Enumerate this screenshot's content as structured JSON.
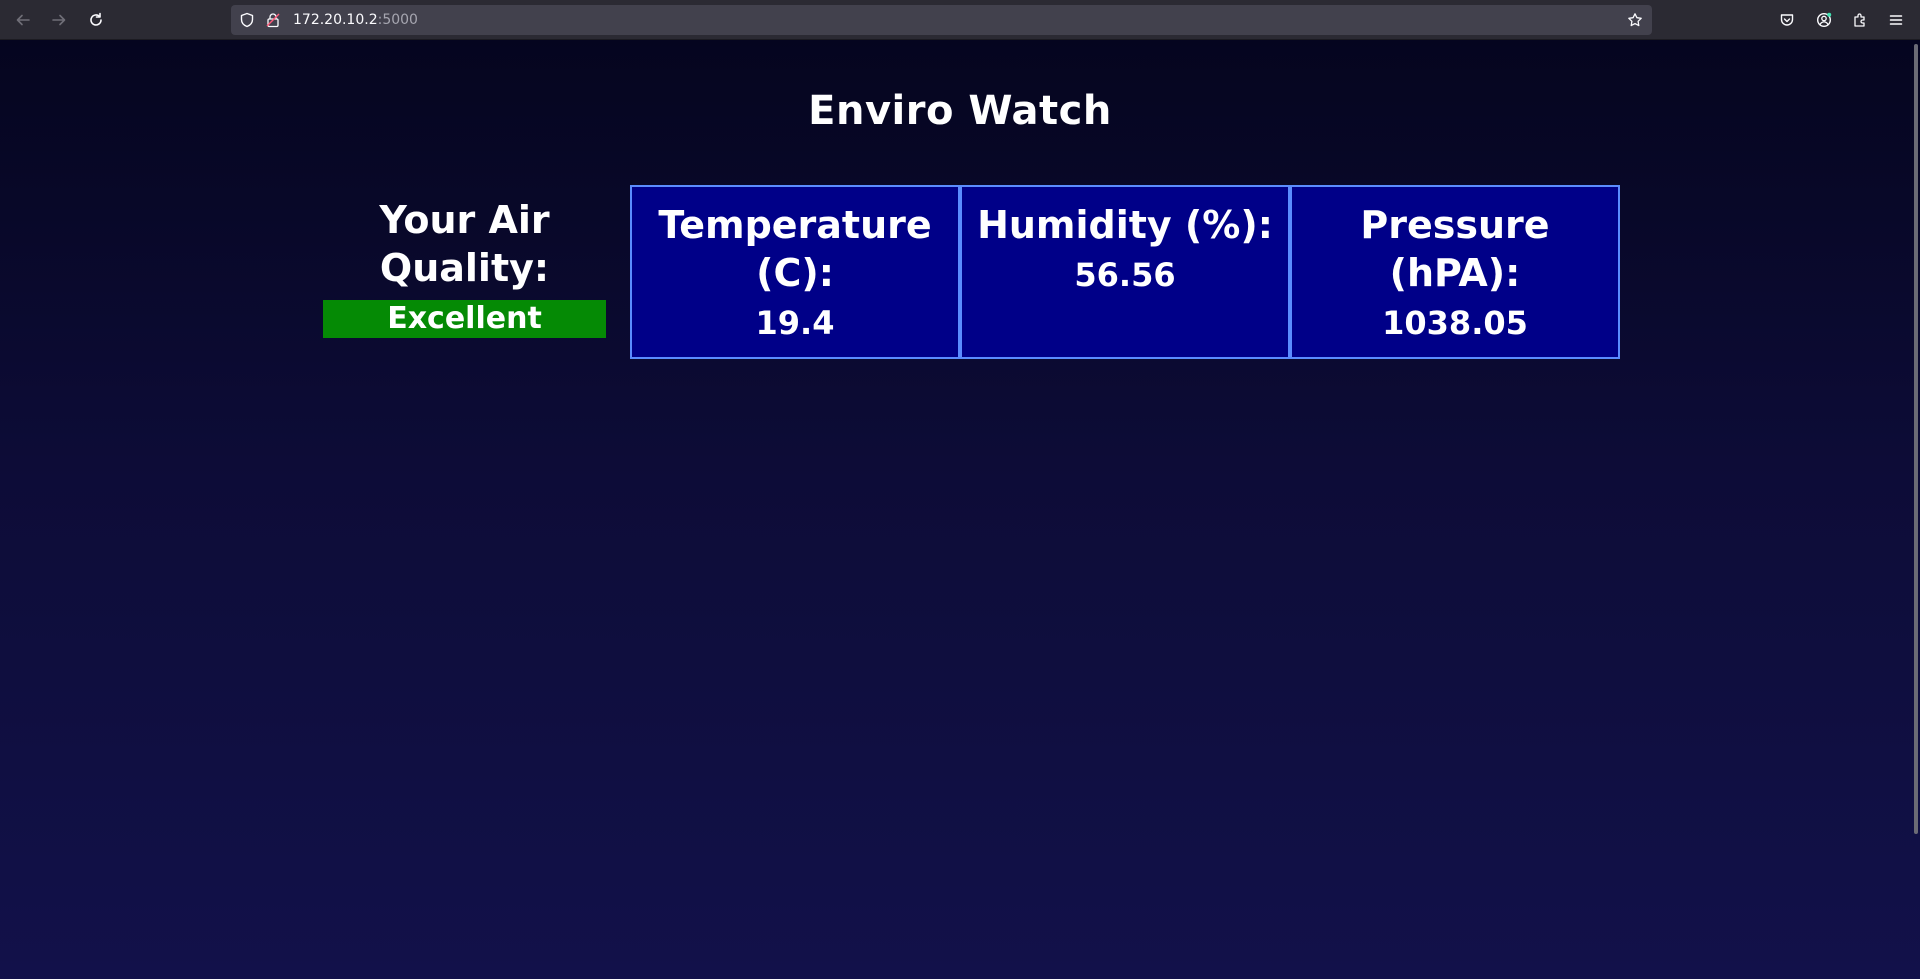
{
  "browser": {
    "url_host": "172.20.10.2",
    "url_port": ":5000",
    "icons": {
      "back": "arrow-left-icon",
      "forward": "arrow-right-icon",
      "reload": "reload-icon",
      "shield": "shield-icon",
      "lock": "insecure-lock-icon",
      "bookmark": "star-icon",
      "pocket": "pocket-icon",
      "account": "account-icon",
      "extensions": "extensions-icon",
      "menu": "hamburger-menu-icon"
    }
  },
  "page": {
    "title": "Enviro Watch",
    "air_quality": {
      "label": "Your Air Quality:",
      "status": "Excellent",
      "status_color": "#058a05"
    },
    "readings": [
      {
        "title": "Temperature (C):",
        "value": "19.4"
      },
      {
        "title": "Humidity (%):",
        "value": "56.56"
      },
      {
        "title": "Pressure (hPA):",
        "value": "1038.05"
      }
    ]
  },
  "colors": {
    "card_bg": "#000088",
    "card_border": "#5b8cff",
    "page_bg_top": "#05051f",
    "page_bg_bottom": "#12114a"
  }
}
